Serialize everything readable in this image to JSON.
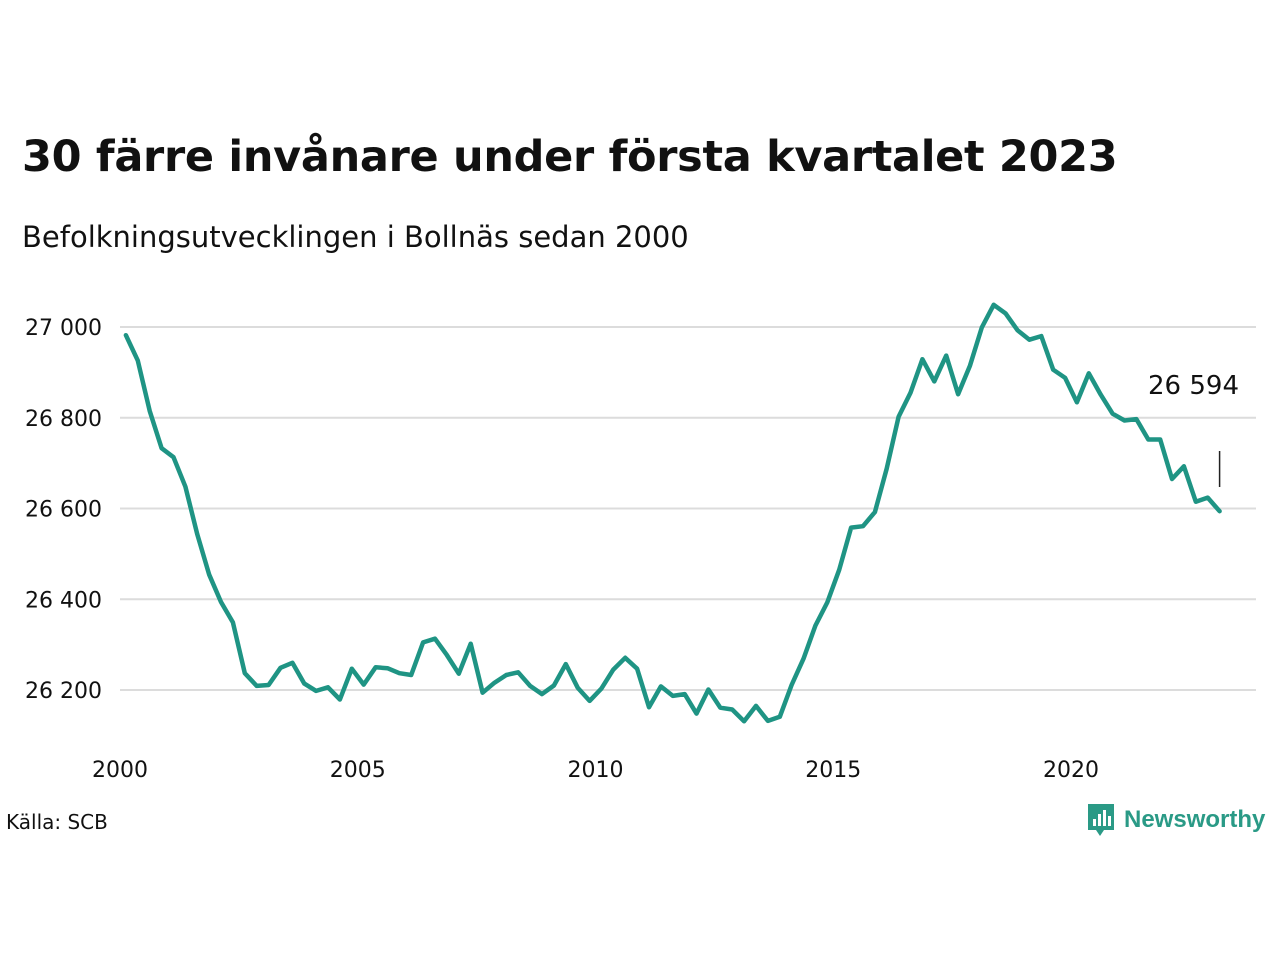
{
  "title": "30 färre invånare under första kvartalet 2023",
  "subtitle": "Befolkningsutvecklingen i Bollnäs sedan 2000",
  "source": "Källa: SCB",
  "brand": {
    "name": "Newsworthy",
    "logo_icon": "bar-chart-speech-bubble-icon",
    "color": "#2a9a86"
  },
  "chart_data": {
    "type": "line",
    "title": "30 färre invånare under första kvartalet 2023",
    "subtitle": "Befolkningsutvecklingen i Bollnäs sedan 2000",
    "xlabel": "",
    "ylabel": "",
    "xlim": [
      2000,
      2023.9
    ],
    "ylim": [
      26100,
      27100
    ],
    "x_ticks": [
      2000,
      2005,
      2010,
      2015,
      2020
    ],
    "x_tick_labels": [
      "2000",
      "2005",
      "2010",
      "2015",
      "2020"
    ],
    "y_ticks": [
      26200,
      26400,
      26600,
      26800,
      27000
    ],
    "y_tick_labels": [
      "26 200",
      "26 400",
      "26 600",
      "26 800",
      "27 000"
    ],
    "grid": "horizontal",
    "line_color": "#1f9484",
    "series": [
      {
        "start_year": 2000,
        "step": 0.25,
        "values": [
          26982,
          26926,
          26815,
          26733,
          26713,
          26648,
          26543,
          26454,
          26394,
          26349,
          26237,
          26209,
          26211,
          26249,
          26260,
          26214,
          26198,
          26206,
          26179,
          26247,
          26212,
          26250,
          26248,
          26237,
          26233,
          26305,
          26313,
          26277,
          26236,
          26302,
          26194,
          26216,
          26233,
          26239,
          26209,
          26191,
          26210,
          26257,
          26205,
          26176,
          26203,
          26245,
          26271,
          26247,
          26162,
          26208,
          26187,
          26191,
          26148,
          26201,
          26161,
          26157,
          26131,
          26165,
          26132,
          26141,
          26211,
          26269,
          26342,
          26393,
          26465,
          26558,
          26561,
          26592,
          26688,
          26802,
          26855,
          26929,
          26880,
          26937,
          26852,
          26915,
          26999,
          27049,
          27030,
          26993,
          26972,
          26980,
          26906,
          26888,
          26834,
          26898,
          26851,
          26809,
          26794,
          26797,
          26752,
          26752,
          26665,
          26693,
          26615,
          26624,
          26594
        ]
      }
    ],
    "annotation": {
      "label": "26 594",
      "value": 26594,
      "period": "Q1 2023"
    }
  }
}
